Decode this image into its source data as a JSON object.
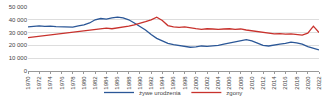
{
  "chart_data": {
    "type": "line",
    "x": [
      1970,
      1971,
      1972,
      1973,
      1974,
      1975,
      1976,
      1977,
      1978,
      1979,
      1980,
      1981,
      1982,
      1983,
      1984,
      1985,
      1986,
      1987,
      1988,
      1989,
      1990,
      1991,
      1992,
      1993,
      1994,
      1995,
      1996,
      1997,
      1998,
      1999,
      2000,
      2001,
      2002,
      2003,
      2004,
      2005,
      2006,
      2007,
      2008,
      2009,
      2010,
      2011,
      2012,
      2013,
      2014,
      2015,
      2016,
      2017,
      2018,
      2019,
      2020,
      2021,
      2022
    ],
    "series": [
      {
        "name": "żywe urodzenia",
        "color": "#2b5797",
        "values": [
          34500,
          35000,
          35200,
          34800,
          35000,
          34600,
          34400,
          34200,
          34300,
          35200,
          36000,
          37500,
          40000,
          41000,
          40500,
          41500,
          42000,
          41500,
          40000,
          37500,
          35000,
          32000,
          28500,
          25500,
          23500,
          21500,
          20500,
          19800,
          19000,
          18500,
          18800,
          19500,
          19200,
          19500,
          20000,
          21000,
          22000,
          23000,
          24000,
          24500,
          23500,
          21500,
          20000,
          19500,
          20500,
          21000,
          21500,
          22500,
          22000,
          21000,
          19000,
          18000,
          16500
        ]
      },
      {
        "name": "zgony",
        "color": "#c8322d",
        "values": [
          26000,
          26500,
          27000,
          27500,
          28000,
          28500,
          29000,
          29500,
          30000,
          30500,
          31500,
          32000,
          32500,
          33000,
          33500,
          33000,
          33500,
          34000,
          35000,
          36000,
          37000,
          38500,
          40000,
          42000,
          39500,
          35500,
          34500,
          34000,
          34500,
          33500,
          33000,
          32500,
          33000,
          32800,
          32500,
          32800,
          33000,
          32500,
          32800,
          32000,
          31500,
          30500,
          30000,
          29500,
          29000,
          29200,
          28800,
          29000,
          28500,
          28000,
          29500,
          35000,
          30000
        ]
      }
    ],
    "xlim": [
      1970,
      2022
    ],
    "xticks": [
      1970,
      1972,
      1974,
      1976,
      1978,
      1980,
      1982,
      1984,
      1986,
      1988,
      1990,
      1992,
      1994,
      1996,
      1998,
      2000,
      2002,
      2004,
      2006,
      2008,
      2010,
      2012,
      2014,
      2016,
      2018,
      2020,
      2022
    ],
    "ylim": [
      0,
      50000
    ],
    "yticks": [
      0,
      {
        "value": 10000,
        "label": "10 000"
      },
      {
        "value": 20000,
        "label": "20 000"
      },
      {
        "value": 30000,
        "label": "30 000"
      },
      {
        "value": 40000,
        "label": "40 000"
      },
      {
        "value": 50000,
        "label": "50 000"
      }
    ],
    "grid": true,
    "legend": "bottom"
  }
}
